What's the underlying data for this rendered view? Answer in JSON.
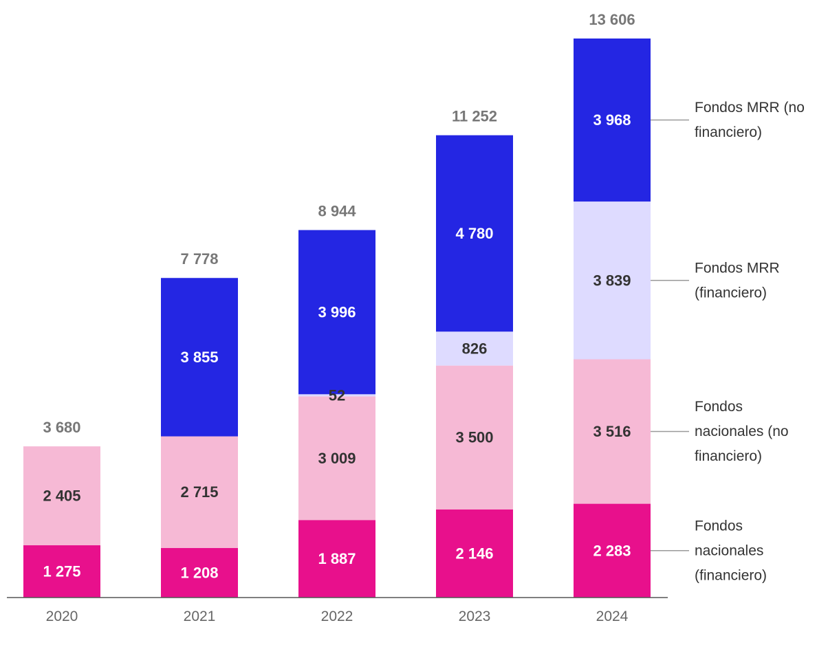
{
  "chart_data": {
    "type": "bar",
    "stacked": true,
    "categories": [
      "2020",
      "2021",
      "2022",
      "2023",
      "2024"
    ],
    "series": [
      {
        "name": "Fondos nacionales (financiero)",
        "legend_lines": [
          "Fondos",
          "nacionales",
          "(financiero)"
        ],
        "color": "#e8108c",
        "label_style": "light",
        "values": [
          1275,
          1208,
          1887,
          2146,
          2283
        ],
        "labels": [
          "1 275",
          "1 208",
          "1 887",
          "2 146",
          "2 283"
        ]
      },
      {
        "name": "Fondos nacionales (no financiero)",
        "legend_lines": [
          "Fondos",
          "nacionales (no",
          "financiero)"
        ],
        "color": "#f6b9d5",
        "label_style": "dark",
        "values": [
          2405,
          2715,
          3009,
          3500,
          3516
        ],
        "labels": [
          "2 405",
          "2 715",
          "3 009",
          "3 500",
          "3 516"
        ]
      },
      {
        "name": "Fondos MRR (financiero)",
        "legend_lines": [
          "Fondos MRR",
          "(financiero)"
        ],
        "color": "#dedbff",
        "label_style": "dark",
        "values": [
          0,
          0,
          52,
          826,
          3839
        ],
        "labels": [
          "",
          "",
          "52",
          "826",
          "3 839"
        ]
      },
      {
        "name": "Fondos MRR (no financiero)",
        "legend_lines": [
          "Fondos MRR (no",
          "financiero)"
        ],
        "color": "#2426e3",
        "label_style": "light",
        "values": [
          0,
          3855,
          3996,
          4780,
          3968
        ],
        "labels": [
          "",
          "3 855",
          "3 996",
          "4 780",
          "3 968"
        ]
      }
    ],
    "totals": [
      3680,
      7778,
      8944,
      11252,
      13606
    ],
    "total_labels": [
      "3 680",
      "7 778",
      "8 944",
      "11 252",
      "13 606"
    ],
    "title": "",
    "xlabel": "",
    "ylabel": "",
    "ylim": [
      0,
      13606
    ],
    "grid": false,
    "legend": "right"
  }
}
